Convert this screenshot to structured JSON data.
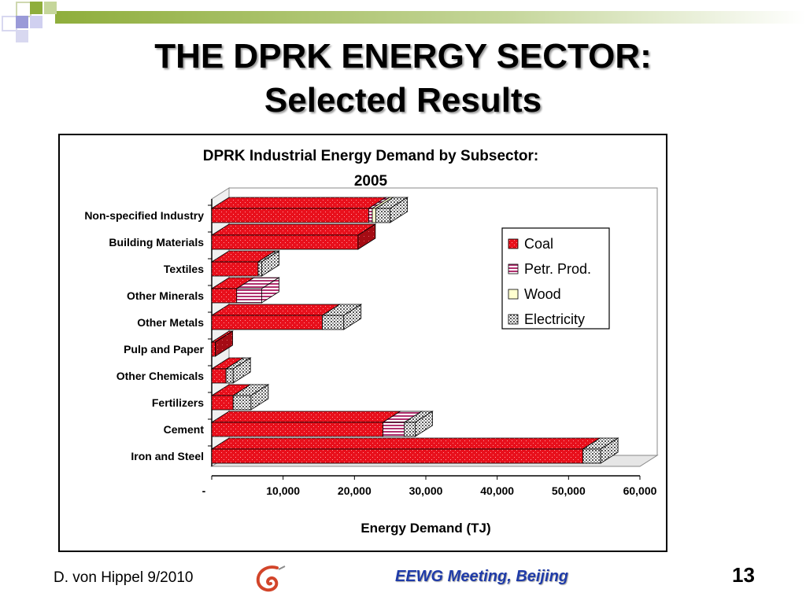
{
  "slide": {
    "title_line1": "THE DPRK ENERGY SECTOR:",
    "title_line2": "Selected Results",
    "footer_author": "D. von Hippel  9/2010",
    "footer_event": "EEWG Meeting, Beijing",
    "page_number": "13"
  },
  "colors": {
    "coal": "#e8101c",
    "coal_dark": "#a50c14",
    "petr": "#c8a0c4",
    "wood": "#ffffd0",
    "electricity": "#d8d8d8",
    "deco_green": "#8fae3c",
    "deco_purple": "#9a9ad8",
    "footer_blue": "#1f3ba8"
  },
  "chart_data": {
    "type": "bar",
    "orientation": "horizontal",
    "stacked": true,
    "style": "3d",
    "title_line1": "DPRK Industrial Energy Demand by Subsector:",
    "title_line2": "2005",
    "xlabel": "Energy Demand (TJ)",
    "ylabel": "",
    "xlim": [
      0,
      60000
    ],
    "x_ticks": [
      "-",
      "10,000",
      "20,000",
      "30,000",
      "40,000",
      "50,000",
      "60,000"
    ],
    "legend_position": "right",
    "categories": [
      "Non-specified Industry",
      "Building Materials",
      "Textiles",
      "Other Minerals",
      "Other Metals",
      "Pulp and Paper",
      "Other Chemicals",
      "Fertilizers",
      "Cement",
      "Iron and Steel"
    ],
    "series": [
      {
        "name": "Coal",
        "values": [
          22000,
          20500,
          6500,
          3500,
          15500,
          500,
          2000,
          3000,
          24000,
          52000
        ]
      },
      {
        "name": "Petr. Prod.",
        "values": [
          500,
          0,
          0,
          3500,
          0,
          0,
          0,
          0,
          3000,
          0
        ]
      },
      {
        "name": "Wood",
        "values": [
          500,
          0,
          0,
          0,
          0,
          0,
          0,
          0,
          0,
          0
        ]
      },
      {
        "name": "Electricity",
        "values": [
          2000,
          0,
          500,
          0,
          3000,
          0,
          1000,
          2500,
          1500,
          2500
        ]
      }
    ]
  }
}
